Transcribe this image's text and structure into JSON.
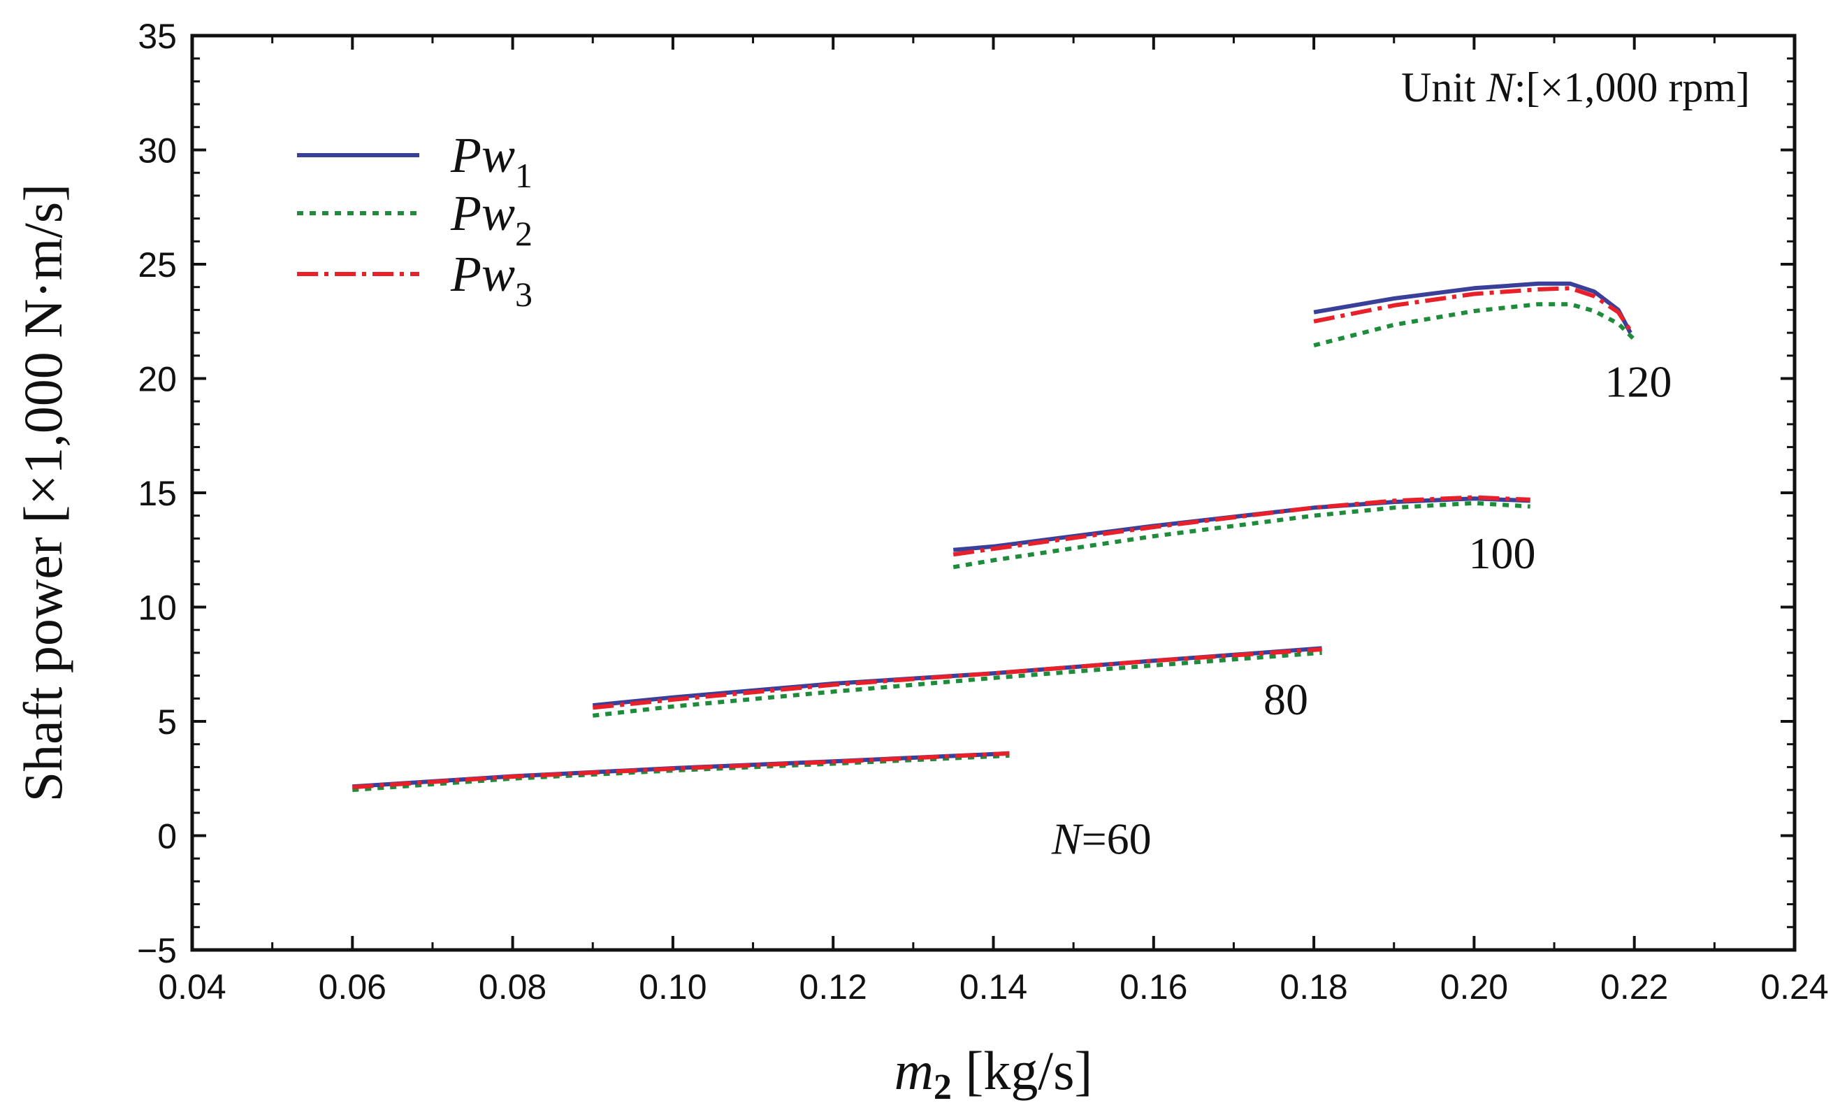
{
  "chart_data": {
    "type": "line",
    "ylabel": "Shaft power [×1,000 N·m/s]",
    "xlabel": {
      "symbol": "m",
      "subscript": "2",
      "unit": "[kg/s]"
    },
    "xlim": [
      0.04,
      0.24
    ],
    "ylim": [
      -5,
      35
    ],
    "x_ticks": [
      "0.04",
      "0.06",
      "0.08",
      "0.10",
      "0.12",
      "0.14",
      "0.16",
      "0.18",
      "0.20",
      "0.22",
      "0.24"
    ],
    "y_ticks": [
      "−5",
      "0",
      "5",
      "10",
      "15",
      "20",
      "25",
      "30",
      "35"
    ],
    "unit_note": {
      "prefix": "Unit ",
      "symbol": "N",
      "suffix": ":[×1,000 rpm]"
    },
    "legend": [
      {
        "base": "Pw",
        "sub": "1",
        "color": "#3a3f99",
        "style": "solid"
      },
      {
        "base": "Pw",
        "sub": "2",
        "color": "#1e8c3a",
        "style": "dotted"
      },
      {
        "base": "Pw",
        "sub": "3",
        "color": "#e8202a",
        "style": "dashdot"
      }
    ],
    "speed_labels": [
      {
        "text": "120",
        "x": 0.2205,
        "y": 19.2
      },
      {
        "text": "100",
        "x": 0.2035,
        "y": 11.7
      },
      {
        "text": "80",
        "x": 0.1765,
        "y": 5.3
      },
      {
        "prefix": "N",
        "text": "=60",
        "x": 0.1535,
        "y": -0.8
      }
    ],
    "series": [
      {
        "name": "Pw1 N=60",
        "group": "Pw1",
        "x": [
          0.06,
          0.08,
          0.1,
          0.12,
          0.142
        ],
        "y": [
          2.15,
          2.6,
          2.95,
          3.25,
          3.6
        ]
      },
      {
        "name": "Pw2 N=60",
        "group": "Pw2",
        "x": [
          0.06,
          0.08,
          0.1,
          0.12,
          0.142
        ],
        "y": [
          2.0,
          2.5,
          2.85,
          3.15,
          3.5
        ]
      },
      {
        "name": "Pw3 N=60",
        "group": "Pw3",
        "x": [
          0.06,
          0.08,
          0.1,
          0.12,
          0.142
        ],
        "y": [
          2.12,
          2.58,
          2.93,
          3.23,
          3.6
        ]
      },
      {
        "name": "Pw1 N=80",
        "group": "Pw1",
        "x": [
          0.09,
          0.1,
          0.12,
          0.14,
          0.16,
          0.181
        ],
        "y": [
          5.7,
          6.05,
          6.65,
          7.1,
          7.65,
          8.2
        ]
      },
      {
        "name": "Pw2 N=80",
        "group": "Pw2",
        "x": [
          0.09,
          0.1,
          0.12,
          0.14,
          0.16,
          0.181
        ],
        "y": [
          5.25,
          5.65,
          6.3,
          6.9,
          7.45,
          8.0
        ]
      },
      {
        "name": "Pw3 N=80",
        "group": "Pw3",
        "x": [
          0.09,
          0.1,
          0.12,
          0.14,
          0.16,
          0.181
        ],
        "y": [
          5.6,
          5.95,
          6.6,
          7.1,
          7.65,
          8.15
        ]
      },
      {
        "name": "Pw1 N=100",
        "group": "Pw1",
        "x": [
          0.135,
          0.14,
          0.16,
          0.18,
          0.19,
          0.2,
          0.207
        ],
        "y": [
          12.5,
          12.65,
          13.55,
          14.35,
          14.6,
          14.75,
          14.65
        ]
      },
      {
        "name": "Pw2 N=100",
        "group": "Pw2",
        "x": [
          0.135,
          0.14,
          0.16,
          0.18,
          0.19,
          0.2,
          0.207
        ],
        "y": [
          11.75,
          12.05,
          13.1,
          14.0,
          14.35,
          14.55,
          14.4
        ]
      },
      {
        "name": "Pw3 N=100",
        "group": "Pw3",
        "x": [
          0.135,
          0.14,
          0.16,
          0.18,
          0.19,
          0.2,
          0.207
        ],
        "y": [
          12.3,
          12.55,
          13.5,
          14.35,
          14.65,
          14.8,
          14.7
        ]
      },
      {
        "name": "Pw1 N=120",
        "group": "Pw1",
        "x": [
          0.18,
          0.19,
          0.2,
          0.208,
          0.212,
          0.215,
          0.218,
          0.2195
        ],
        "y": [
          22.9,
          23.5,
          23.95,
          24.15,
          24.15,
          23.8,
          23.0,
          22.0
        ]
      },
      {
        "name": "Pw2 N=120",
        "group": "Pw2",
        "x": [
          0.18,
          0.19,
          0.2,
          0.208,
          0.212,
          0.215,
          0.218,
          0.22
        ],
        "y": [
          21.45,
          22.35,
          22.95,
          23.25,
          23.25,
          22.95,
          22.4,
          21.7
        ]
      },
      {
        "name": "Pw3 N=120",
        "group": "Pw3",
        "x": [
          0.18,
          0.19,
          0.2,
          0.208,
          0.212,
          0.215,
          0.218,
          0.2195
        ],
        "y": [
          22.5,
          23.2,
          23.7,
          23.9,
          23.95,
          23.6,
          22.9,
          22.1
        ]
      }
    ]
  }
}
